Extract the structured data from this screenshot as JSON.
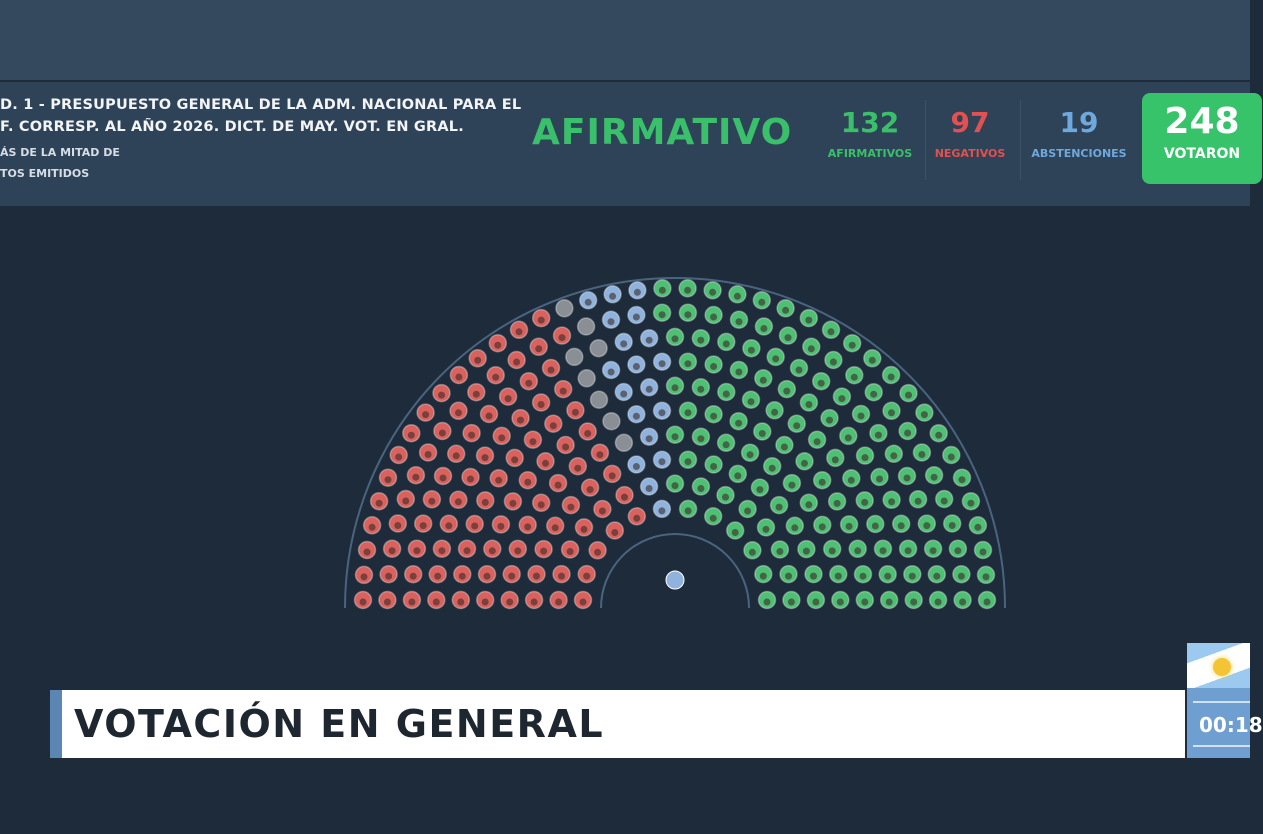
{
  "header": {
    "title_line1": "D. 1 - PRESUPUESTO GENERAL DE LA ADM. NACIONAL PARA EL",
    "title_line2": "F. CORRESP. AL AÑO 2026. DICT. DE MAY. VOT. EN GRAL.",
    "majority_line1": "ÁS DE LA MITAD DE",
    "majority_line2": "TOS EMITIDOS",
    "result": "AFIRMATIVO"
  },
  "stats": {
    "afirmativos": {
      "value": "132",
      "label": "AFIRMATIVOS",
      "color": "#3ac06a"
    },
    "negativos": {
      "value": "97",
      "label": "NEGATIVOS",
      "color": "#e0514f"
    },
    "abstenciones": {
      "value": "19",
      "label": "ABSTENCIONES",
      "color": "#6fa8dc"
    },
    "votaron": {
      "value": "248",
      "label": "VOTARON",
      "color": "#36c36a"
    }
  },
  "hemicycle": {
    "seats": {
      "negativos": 97,
      "ausentes": 8,
      "abstenciones": 19,
      "afirmativos": 132
    },
    "colors": {
      "negativos": "#d9625e",
      "ausentes": "#8a8f95",
      "abstenciones": "#8fb3dd",
      "afirmativos": "#4fbf74"
    }
  },
  "caption": "VOTACIÓN EN GENERAL",
  "clock": {
    "time": "00:18"
  }
}
